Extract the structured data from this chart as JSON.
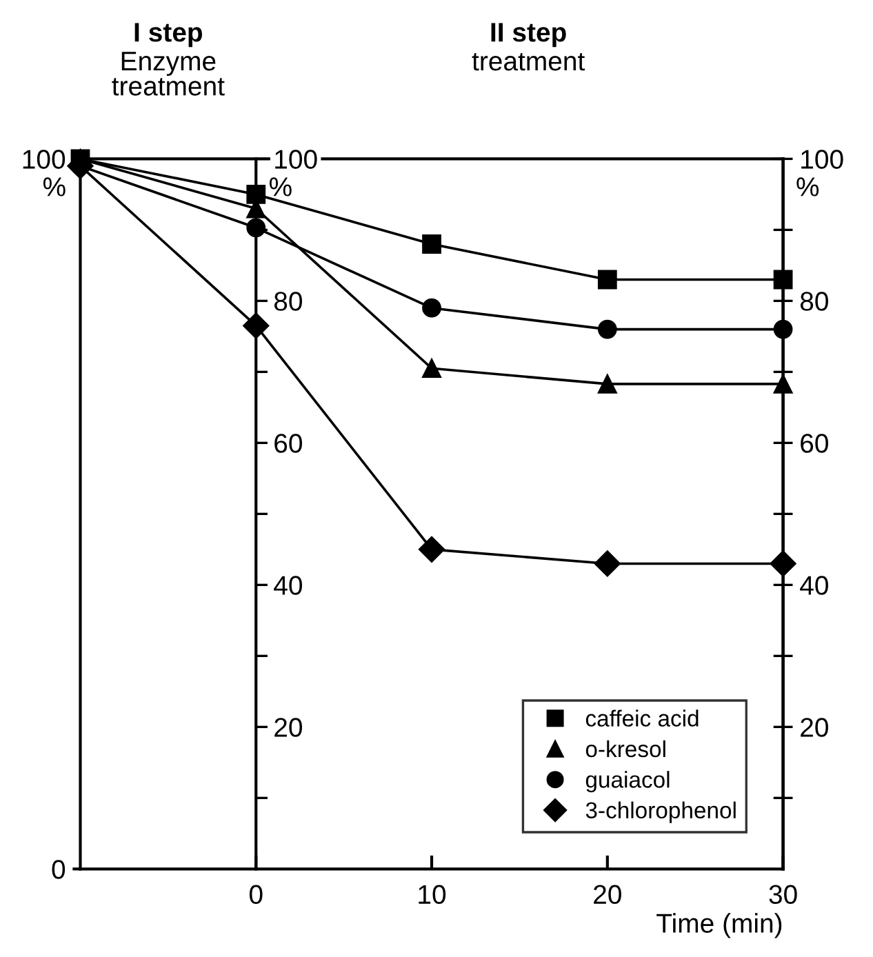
{
  "chart_data": {
    "type": "line",
    "xlabel": "Time (min)",
    "annotations": [
      "I step",
      "Enzyme\ntreatment",
      "II step",
      "treatment"
    ],
    "x": [
      -10,
      0,
      10,
      20,
      30
    ],
    "xlim": [
      -10,
      30
    ],
    "xticks": [
      0,
      10,
      20,
      30
    ],
    "ylim": [
      0,
      100
    ],
    "yticks": [
      0,
      100
    ],
    "ylabel": "%",
    "y2label": "%",
    "y3label": "%",
    "y3lim": [
      0,
      100
    ],
    "y3ticks": [
      {
        "value": 10,
        "label": null
      },
      20,
      {
        "value": 30,
        "label": null
      },
      40,
      {
        "value": 50,
        "label": null
      },
      60,
      {
        "value": 70,
        "label": null
      },
      80,
      {
        "value": 90,
        "label": null
      },
      100
    ],
    "y2lim": [
      0,
      100
    ],
    "y2ticks": [
      {
        "value": 10,
        "label": null
      },
      20,
      {
        "value": 30,
        "label": null
      },
      40,
      {
        "value": 50,
        "label": null
      },
      60,
      {
        "value": 70,
        "label": null
      },
      80,
      {
        "value": 90,
        "label": null
      },
      100
    ],
    "legend": "bottom right",
    "grid": false,
    "series": [
      {
        "name": "caffeic acid",
        "color": "#000000",
        "marker": "square",
        "values": [
          100,
          95,
          88,
          83,
          83
        ]
      },
      {
        "name": "o-kresol",
        "color": "#000000",
        "marker": "triangle",
        "values": [
          100,
          93,
          70.5,
          68.3,
          68.3
        ]
      },
      {
        "name": "guaiacol",
        "color": "#000000",
        "marker": "circle",
        "values": [
          99,
          90.3,
          79,
          76,
          76
        ]
      },
      {
        "name": "3-chlorophenol",
        "color": "#000000",
        "marker": "diamond",
        "values": [
          99,
          76.5,
          45,
          43,
          43
        ]
      }
    ]
  }
}
